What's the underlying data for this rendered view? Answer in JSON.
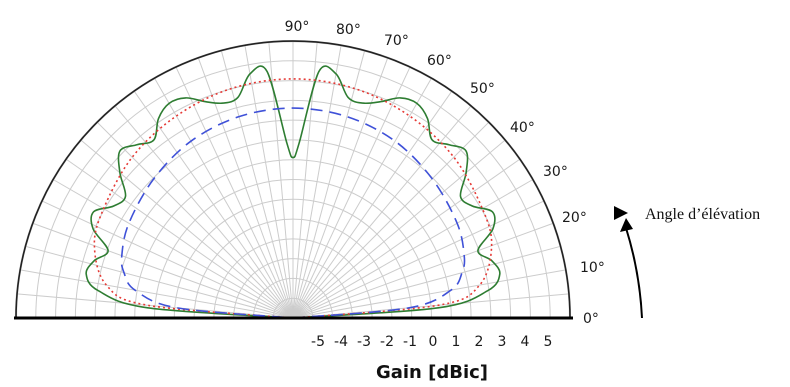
{
  "chart_data": {
    "type": "polar-line",
    "xlabel": "Gain [dBic]",
    "annotation": "Angle d’élévation",
    "angle_unit": "°",
    "radial_range_dBic": [
      -14,
      5
    ],
    "angle_ticks": [
      0,
      10,
      20,
      30,
      40,
      50,
      60,
      70,
      80,
      90
    ],
    "gain_ticks": [
      "-5",
      "-4",
      "-3",
      "-2",
      "-1",
      "0",
      "1",
      "2",
      "3",
      "4",
      "5"
    ],
    "grid": true,
    "colors": {
      "series_green": "#2e7d32",
      "series_red": "#e53935",
      "series_blue": "#3f51d8",
      "grid": "#cccccc",
      "axis": "#000000"
    },
    "series": [
      {
        "style": "solid",
        "color": "#2e7d32",
        "elevation_deg": [
          0,
          4,
          8,
          12,
          16,
          20,
          24,
          28,
          32,
          36,
          40,
          44,
          48,
          52,
          56,
          60,
          64,
          68,
          72,
          76,
          80,
          84,
          88,
          90,
          92,
          96,
          100,
          104,
          108,
          112,
          116,
          120,
          124,
          128,
          132,
          136,
          140,
          144,
          148,
          152,
          156,
          160,
          164,
          168,
          172,
          176,
          180
        ],
        "gain_dBic": [
          -14,
          -4,
          -0.5,
          0.5,
          0.2,
          -0.5,
          1,
          1.5,
          0.5,
          0.2,
          1.5,
          2.5,
          2,
          1.5,
          2.5,
          3,
          2.8,
          2,
          1.5,
          1.6,
          3,
          3,
          -2,
          -3,
          -2,
          3,
          3,
          1.6,
          1.5,
          2,
          2.8,
          3,
          2.5,
          1.5,
          2,
          2.5,
          1.5,
          0.2,
          0.5,
          1.5,
          1,
          -0.5,
          0.2,
          0.5,
          -0.5,
          -4,
          -14
        ]
      },
      {
        "style": "dotted",
        "color": "#e53935",
        "elevation_deg": [
          0,
          5,
          10,
          20,
          30,
          45,
          60,
          75,
          90,
          105,
          120,
          135,
          150,
          160,
          170,
          175,
          180
        ],
        "gain_dBic": [
          -14,
          -4,
          -1,
          0.5,
          1,
          1.6,
          2,
          2.3,
          2.4,
          2.3,
          2,
          1.6,
          1,
          0.5,
          -1,
          -4,
          -14
        ]
      },
      {
        "style": "dashed",
        "color": "#3f51d8",
        "elevation_deg": [
          0,
          5,
          10,
          15,
          20,
          30,
          45,
          60,
          75,
          90,
          105,
          120,
          135,
          150,
          160,
          165,
          170,
          175,
          180
        ],
        "gain_dBic": [
          -14,
          -6,
          -3,
          -2,
          -1.5,
          -1,
          -0.5,
          0,
          0.3,
          0.4,
          0.3,
          0,
          -0.5,
          -1,
          -1.5,
          -2,
          -3,
          -6,
          -14
        ]
      }
    ]
  }
}
